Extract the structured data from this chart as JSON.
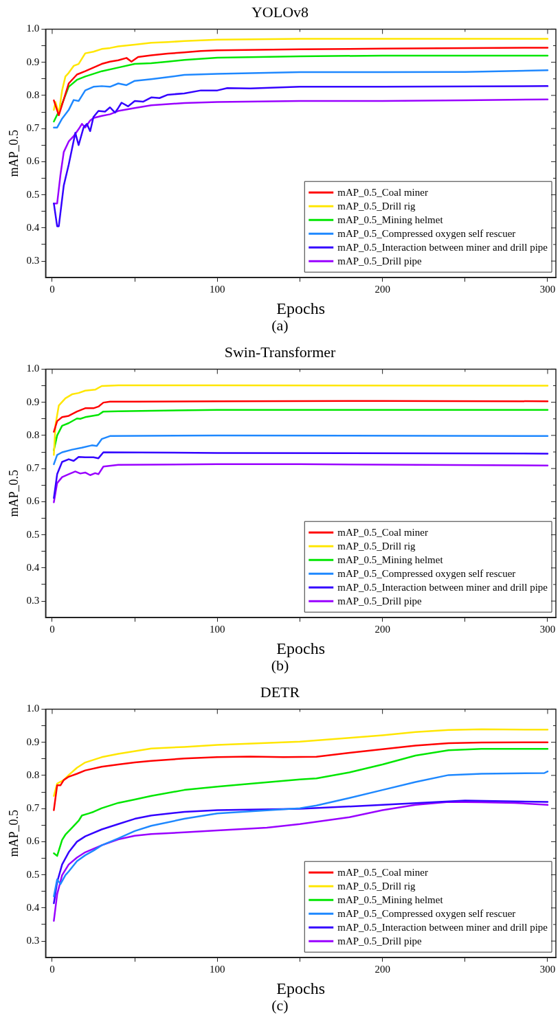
{
  "chart_data": [
    {
      "type": "line",
      "title": "YOLOv8",
      "xlabel": "Epochs",
      "ylabel": "mAP_0.5",
      "annotations": [
        "(a)"
      ],
      "legend": "bottom right",
      "marker": "none",
      "line_style": "solid",
      "xlim": [
        -4,
        305
      ],
      "xticks": [
        0,
        {
          "value": 50,
          "label": null
        },
        100,
        {
          "value": 150,
          "label": null
        },
        200,
        {
          "value": 250,
          "label": null
        },
        300
      ],
      "ylim": [
        0.25,
        1.0
      ],
      "yticks": [
        0.3,
        {
          "value": 0.35,
          "label": null
        },
        0.4,
        {
          "value": 0.45,
          "label": null
        },
        0.5,
        {
          "value": 0.55,
          "label": null
        },
        0.6,
        {
          "value": 0.65,
          "label": null
        },
        0.7,
        {
          "value": 0.75,
          "label": null
        },
        0.8,
        {
          "value": 0.85,
          "label": null
        },
        0.9,
        {
          "value": 0.95,
          "label": null
        },
        {
          "value": 1,
          "label": "1.0"
        }
      ],
      "series": [
        {
          "name": "mAP_0.5_Coal miner",
          "color": "#ff0000",
          "x": [
            1,
            4,
            10,
            15,
            20,
            25,
            30,
            35,
            40,
            45,
            48,
            52,
            60,
            70,
            80,
            90,
            100,
            150,
            200,
            300
          ],
          "values": [
            0.785,
            0.74,
            0.836,
            0.863,
            0.873,
            0.884,
            0.895,
            0.902,
            0.906,
            0.913,
            0.902,
            0.916,
            0.921,
            0.926,
            0.93,
            0.934,
            0.936,
            0.939,
            0.941,
            0.944
          ]
        },
        {
          "name": "mAP_0.5_Drill rig",
          "color": "#ffe600",
          "x": [
            1,
            2,
            4,
            6,
            8,
            10,
            13,
            16,
            18,
            20,
            25,
            30,
            35,
            40,
            50,
            60,
            70,
            80,
            100,
            150,
            200,
            300
          ],
          "values": [
            0.756,
            0.78,
            0.745,
            0.815,
            0.857,
            0.868,
            0.889,
            0.895,
            0.911,
            0.927,
            0.932,
            0.94,
            0.943,
            0.948,
            0.953,
            0.959,
            0.961,
            0.964,
            0.968,
            0.971,
            0.971,
            0.971
          ]
        },
        {
          "name": "mAP_0.5_Mining helmet",
          "color": "#00e600",
          "x": [
            1,
            5,
            10,
            15,
            20,
            30,
            40,
            50,
            60,
            70,
            80,
            100,
            150,
            200,
            300
          ],
          "values": [
            0.721,
            0.762,
            0.826,
            0.847,
            0.857,
            0.873,
            0.884,
            0.895,
            0.897,
            0.902,
            0.907,
            0.914,
            0.918,
            0.92,
            0.92
          ]
        },
        {
          "name": "mAP_0.5_Compressed oxygen self rescuer",
          "color": "#1e88ff",
          "x": [
            1,
            3,
            6,
            10,
            13,
            16,
            20,
            25,
            30,
            35,
            40,
            45,
            50,
            60,
            70,
            80,
            100,
            150,
            200,
            250,
            300
          ],
          "values": [
            0.703,
            0.703,
            0.73,
            0.756,
            0.786,
            0.783,
            0.815,
            0.826,
            0.828,
            0.826,
            0.836,
            0.831,
            0.844,
            0.849,
            0.855,
            0.862,
            0.865,
            0.87,
            0.87,
            0.871,
            0.876
          ]
        },
        {
          "name": "mAP_0.5_Interaction between miner and drill pipe",
          "color": "#3300ff",
          "x": [
            1,
            3,
            4,
            7,
            10,
            14,
            16,
            19,
            21,
            23,
            25,
            28,
            32,
            35,
            38,
            40,
            42,
            46,
            50,
            55,
            60,
            65,
            70,
            80,
            90,
            100,
            106,
            120,
            150,
            200,
            300
          ],
          "values": [
            0.474,
            0.405,
            0.405,
            0.528,
            0.591,
            0.687,
            0.65,
            0.703,
            0.714,
            0.692,
            0.735,
            0.753,
            0.751,
            0.764,
            0.748,
            0.762,
            0.778,
            0.767,
            0.783,
            0.781,
            0.794,
            0.792,
            0.802,
            0.806,
            0.815,
            0.815,
            0.822,
            0.821,
            0.826,
            0.826,
            0.828
          ]
        },
        {
          "name": "mAP_0.5_Drill pipe",
          "color": "#9900ff",
          "x": [
            1,
            3,
            5,
            7,
            10,
            13,
            16,
            18,
            20,
            23,
            25,
            30,
            35,
            40,
            50,
            60,
            80,
            100,
            150,
            200,
            250,
            300
          ],
          "values": [
            0.474,
            0.474,
            0.56,
            0.629,
            0.661,
            0.677,
            0.698,
            0.714,
            0.703,
            0.724,
            0.732,
            0.738,
            0.743,
            0.753,
            0.762,
            0.77,
            0.777,
            0.78,
            0.783,
            0.783,
            0.785,
            0.788
          ]
        }
      ]
    },
    {
      "type": "line",
      "title": "Swin-Transformer",
      "xlabel": "Epochs",
      "ylabel": "mAP_0.5",
      "annotations": [
        "(b)"
      ],
      "legend": "bottom right",
      "marker": "none",
      "line_style": "solid",
      "xlim": [
        -4,
        305
      ],
      "xticks": [
        0,
        {
          "value": 50,
          "label": null
        },
        100,
        {
          "value": 150,
          "label": null
        },
        200,
        {
          "value": 250,
          "label": null
        },
        300
      ],
      "ylim": [
        0.25,
        1.0
      ],
      "yticks": [
        0.3,
        {
          "value": 0.35,
          "label": null
        },
        0.4,
        {
          "value": 0.45,
          "label": null
        },
        0.5,
        {
          "value": 0.55,
          "label": null
        },
        0.6,
        {
          "value": 0.65,
          "label": null
        },
        0.7,
        {
          "value": 0.75,
          "label": null
        },
        0.8,
        {
          "value": 0.85,
          "label": null
        },
        0.9,
        {
          "value": 0.95,
          "label": null
        },
        {
          "value": 1,
          "label": "1.0"
        }
      ],
      "series": [
        {
          "name": "mAP_0.5_Coal miner",
          "color": "#ff0000",
          "x": [
            1,
            3,
            6,
            10,
            15,
            20,
            25,
            28,
            31,
            35,
            50,
            100,
            200,
            300
          ],
          "values": [
            0.811,
            0.843,
            0.855,
            0.859,
            0.872,
            0.882,
            0.882,
            0.887,
            0.899,
            0.902,
            0.902,
            0.903,
            0.904,
            0.903
          ]
        },
        {
          "name": "mAP_0.5_Drill rig",
          "color": "#ffe600",
          "x": [
            1,
            2,
            4,
            8,
            12,
            16,
            20,
            26,
            30,
            40,
            100,
            300
          ],
          "values": [
            0.741,
            0.832,
            0.89,
            0.912,
            0.924,
            0.928,
            0.935,
            0.938,
            0.949,
            0.951,
            0.951,
            0.95
          ]
        },
        {
          "name": "mAP_0.5_Mining helmet",
          "color": "#00e600",
          "x": [
            1,
            3,
            6,
            10,
            15,
            17,
            20,
            28,
            31,
            40,
            100,
            300
          ],
          "values": [
            0.755,
            0.8,
            0.829,
            0.837,
            0.851,
            0.85,
            0.855,
            0.862,
            0.872,
            0.873,
            0.877,
            0.877
          ]
        },
        {
          "name": "mAP_0.5_Compressed oxygen self rescuer",
          "color": "#1e88ff",
          "x": [
            1,
            3,
            6,
            12,
            18,
            24,
            27,
            30,
            35,
            100,
            300
          ],
          "values": [
            0.713,
            0.741,
            0.749,
            0.757,
            0.763,
            0.77,
            0.768,
            0.789,
            0.798,
            0.8,
            0.798
          ]
        },
        {
          "name": "mAP_0.5_Interaction between miner and drill pipe",
          "color": "#3300ff",
          "x": [
            1,
            3,
            6,
            10,
            13,
            16,
            20,
            25,
            28,
            31,
            100,
            300
          ],
          "values": [
            0.611,
            0.683,
            0.72,
            0.728,
            0.723,
            0.735,
            0.734,
            0.734,
            0.731,
            0.749,
            0.747,
            0.745
          ]
        },
        {
          "name": "mAP_0.5_Drill pipe",
          "color": "#9900ff",
          "x": [
            1,
            3,
            6,
            10,
            14,
            17,
            20,
            23,
            26,
            28,
            31,
            40,
            100,
            150,
            300
          ],
          "values": [
            0.598,
            0.656,
            0.674,
            0.683,
            0.691,
            0.685,
            0.688,
            0.68,
            0.686,
            0.683,
            0.706,
            0.711,
            0.713,
            0.713,
            0.709
          ]
        }
      ]
    },
    {
      "type": "line",
      "title": "DETR",
      "xlabel": "Epochs",
      "ylabel": "mAP_0.5",
      "annotations": [
        "(c)"
      ],
      "legend": "bottom right",
      "marker": "none",
      "line_style": "solid",
      "xlim": [
        -4,
        305
      ],
      "xticks": [
        0,
        {
          "value": 50,
          "label": null
        },
        100,
        {
          "value": 150,
          "label": null
        },
        200,
        {
          "value": 250,
          "label": null
        },
        300
      ],
      "ylim": [
        0.25,
        1.0
      ],
      "yticks": [
        0.3,
        {
          "value": 0.35,
          "label": null
        },
        0.4,
        {
          "value": 0.45,
          "label": null
        },
        0.5,
        {
          "value": 0.55,
          "label": null
        },
        0.6,
        {
          "value": 0.65,
          "label": null
        },
        0.7,
        {
          "value": 0.75,
          "label": null
        },
        0.8,
        {
          "value": 0.85,
          "label": null
        },
        0.9,
        {
          "value": 0.95,
          "label": null
        },
        {
          "value": 1,
          "label": "1.0"
        }
      ],
      "series": [
        {
          "name": "mAP_0.5_Coal miner",
          "color": "#ff0000",
          "x": [
            1,
            3,
            5,
            7,
            10,
            15,
            20,
            30,
            40,
            50,
            60,
            80,
            100,
            120,
            140,
            160,
            180,
            200,
            220,
            240,
            260,
            300
          ],
          "values": [
            0.695,
            0.77,
            0.77,
            0.786,
            0.796,
            0.805,
            0.815,
            0.826,
            0.833,
            0.839,
            0.844,
            0.851,
            0.855,
            0.857,
            0.855,
            0.856,
            0.868,
            0.879,
            0.89,
            0.897,
            0.899,
            0.9
          ]
        },
        {
          "name": "mAP_0.5_Drill rig",
          "color": "#ffe600",
          "x": [
            1,
            3,
            7,
            10,
            15,
            20,
            30,
            40,
            60,
            80,
            100,
            150,
            180,
            200,
            220,
            240,
            260,
            300
          ],
          "values": [
            0.738,
            0.775,
            0.786,
            0.801,
            0.823,
            0.839,
            0.855,
            0.865,
            0.881,
            0.886,
            0.892,
            0.902,
            0.913,
            0.921,
            0.931,
            0.937,
            0.939,
            0.938
          ]
        },
        {
          "name": "mAP_0.5_Mining helmet",
          "color": "#00e600",
          "x": [
            1,
            3,
            6,
            8,
            12,
            16,
            18,
            22,
            25,
            30,
            40,
            50,
            60,
            80,
            100,
            120,
            150,
            160,
            180,
            200,
            220,
            240,
            260,
            300
          ],
          "values": [
            0.565,
            0.557,
            0.605,
            0.621,
            0.642,
            0.663,
            0.679,
            0.685,
            0.69,
            0.701,
            0.717,
            0.727,
            0.738,
            0.756,
            0.766,
            0.775,
            0.788,
            0.791,
            0.809,
            0.833,
            0.86,
            0.876,
            0.88,
            0.88
          ]
        },
        {
          "name": "mAP_0.5_Compressed oxygen self rescuer",
          "color": "#1e88ff",
          "x": [
            1,
            3,
            5,
            8,
            10,
            15,
            20,
            25,
            30,
            40,
            50,
            60,
            80,
            100,
            150,
            160,
            180,
            200,
            220,
            240,
            260,
            298,
            300
          ],
          "values": [
            0.435,
            0.486,
            0.472,
            0.499,
            0.51,
            0.541,
            0.559,
            0.573,
            0.589,
            0.61,
            0.632,
            0.648,
            0.669,
            0.685,
            0.701,
            0.709,
            0.732,
            0.756,
            0.78,
            0.801,
            0.805,
            0.807,
            0.812
          ]
        },
        {
          "name": "mAP_0.5_Interaction between miner and drill pipe",
          "color": "#3300ff",
          "x": [
            1,
            3,
            6,
            10,
            15,
            20,
            30,
            40,
            50,
            60,
            80,
            100,
            150,
            200,
            250,
            300
          ],
          "values": [
            0.414,
            0.478,
            0.531,
            0.568,
            0.6,
            0.616,
            0.637,
            0.653,
            0.669,
            0.679,
            0.69,
            0.695,
            0.699,
            0.711,
            0.724,
            0.72
          ]
        },
        {
          "name": "mAP_0.5_Drill pipe",
          "color": "#9900ff",
          "x": [
            1,
            3,
            6,
            10,
            15,
            20,
            30,
            40,
            50,
            60,
            80,
            100,
            130,
            150,
            180,
            200,
            220,
            240,
            260,
            280,
            300
          ],
          "values": [
            0.361,
            0.441,
            0.499,
            0.531,
            0.552,
            0.568,
            0.589,
            0.607,
            0.618,
            0.623,
            0.628,
            0.634,
            0.642,
            0.653,
            0.674,
            0.695,
            0.711,
            0.72,
            0.719,
            0.717,
            0.711
          ]
        }
      ]
    }
  ]
}
